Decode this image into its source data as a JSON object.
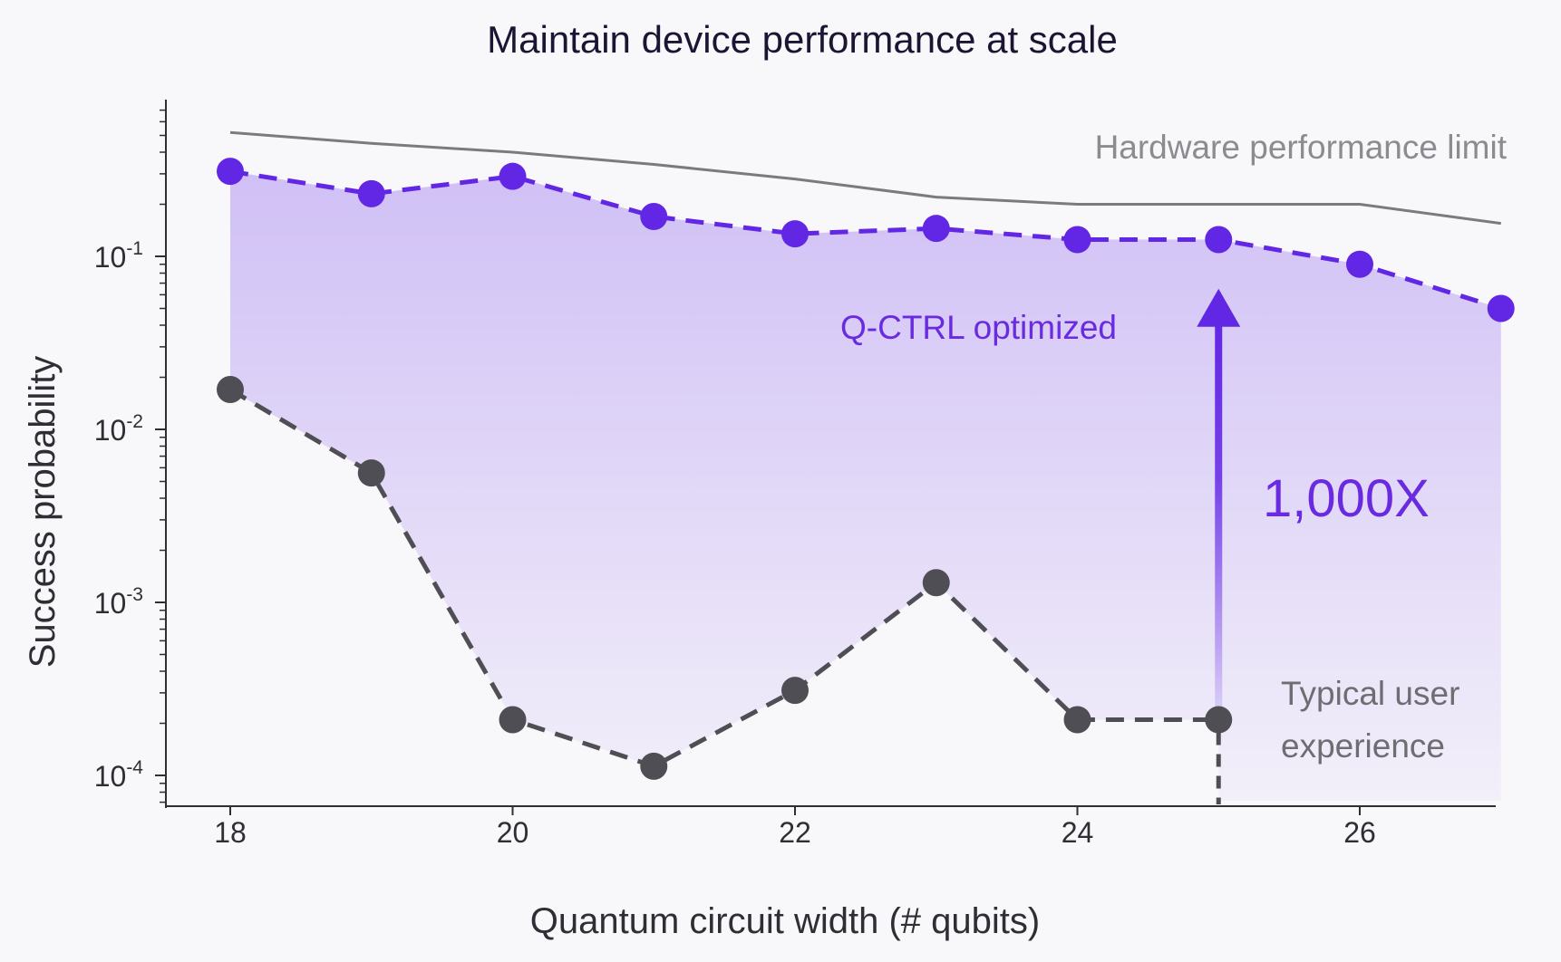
{
  "chart_data": {
    "type": "line",
    "title": "Maintain device performance at scale",
    "xlabel": "Quantum circuit width (# qubits)",
    "ylabel": "Success probability",
    "yscale": "log",
    "xlim": [
      17.75,
      27.1
    ],
    "ylim": [
      7e-05,
      0.9
    ],
    "x_ticks": [
      {
        "value": 18,
        "label": "18"
      },
      {
        "value": 20,
        "label": "20"
      },
      {
        "value": 22,
        "label": "22"
      },
      {
        "value": 24,
        "label": "24"
      },
      {
        "value": 26,
        "label": "26"
      }
    ],
    "y_ticks": [
      {
        "value": 0.1,
        "base": "10",
        "exp": "-1"
      },
      {
        "value": 0.01,
        "base": "10",
        "exp": "-2"
      },
      {
        "value": 0.001,
        "base": "10",
        "exp": "-3"
      },
      {
        "value": 0.0001,
        "base": "10",
        "exp": "-4"
      }
    ],
    "grid": false,
    "series": [
      {
        "id": "limit",
        "style": "solid-line",
        "color": "#7a7a7f",
        "x": [
          18,
          19,
          20,
          21,
          22,
          23,
          24,
          25,
          26,
          27
        ],
        "values": [
          0.52,
          0.45,
          0.4,
          0.34,
          0.28,
          0.22,
          0.2,
          0.2,
          0.2,
          0.155
        ]
      },
      {
        "id": "optimized",
        "style": "dashed-markers",
        "color": "#6227e4",
        "x": [
          18,
          19,
          20,
          21,
          22,
          23,
          24,
          25,
          26,
          27
        ],
        "values": [
          0.31,
          0.23,
          0.29,
          0.17,
          0.135,
          0.145,
          0.125,
          0.125,
          0.09,
          0.05
        ]
      },
      {
        "id": "typical",
        "style": "dashed-markers",
        "color": "#4f4e54",
        "x": [
          18,
          19,
          20,
          21,
          22,
          23,
          24,
          25
        ],
        "values": [
          0.017,
          0.0056,
          0.00021,
          0.000113,
          0.00031,
          0.0013,
          0.00021,
          0.00021
        ]
      }
    ],
    "annotations": {
      "hardware_limit": "Hardware performance limit",
      "optimized": "Q-CTRL optimized",
      "improvement": "1,000X",
      "typical_line1": "Typical user",
      "typical_line2": "experience"
    },
    "arrow": {
      "x": 25,
      "from": 0.00025,
      "to": 0.065,
      "color": "#6227e4"
    },
    "fill_color": "#c9b6f5"
  }
}
